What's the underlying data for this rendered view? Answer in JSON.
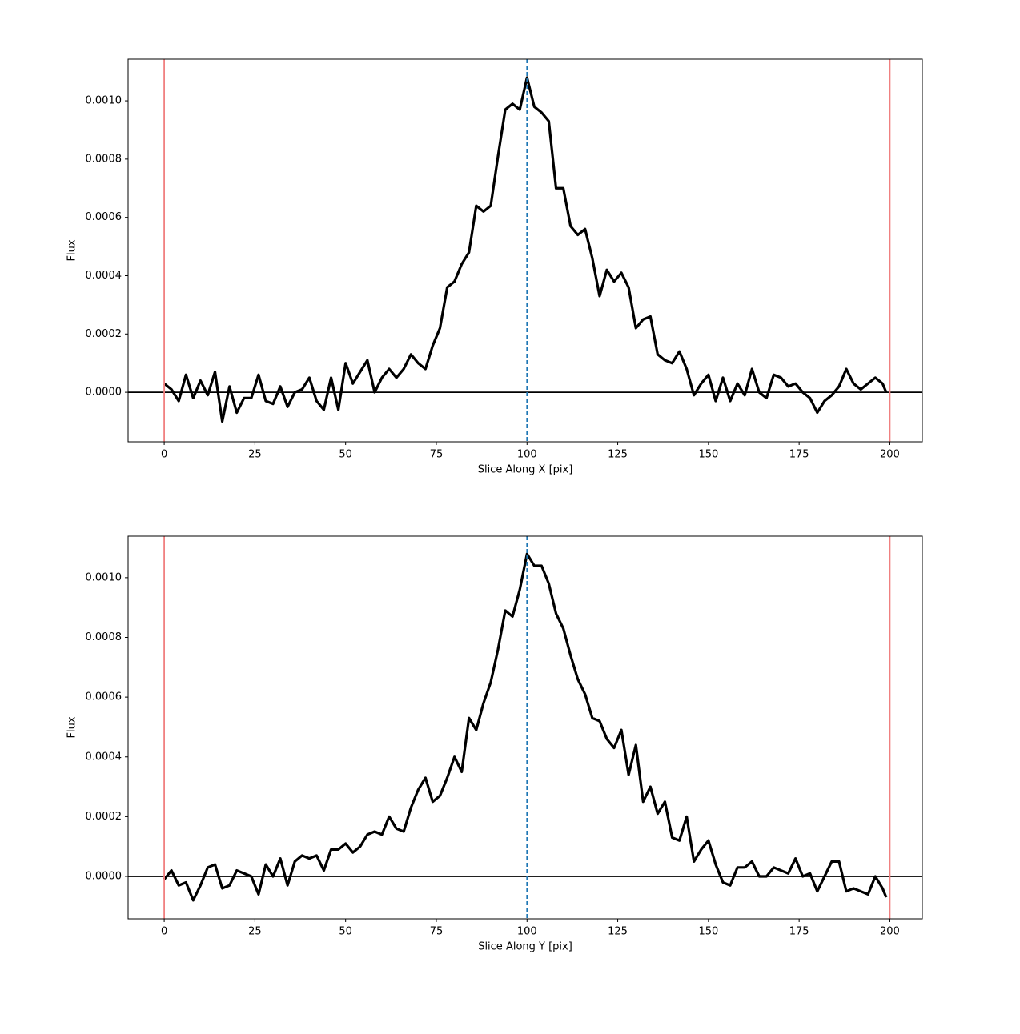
{
  "chart_data": [
    {
      "type": "line",
      "xlabel": "Slice Along X [pix]",
      "ylabel": "Flux",
      "x": [
        0,
        2,
        4,
        6,
        8,
        10,
        12,
        14,
        16,
        18,
        20,
        22,
        24,
        26,
        28,
        30,
        32,
        34,
        36,
        38,
        40,
        42,
        44,
        46,
        48,
        50,
        52,
        54,
        56,
        58,
        60,
        62,
        64,
        66,
        68,
        70,
        72,
        74,
        76,
        78,
        80,
        82,
        84,
        86,
        88,
        90,
        92,
        94,
        96,
        98,
        100,
        102,
        104,
        106,
        108,
        110,
        112,
        114,
        116,
        118,
        120,
        122,
        124,
        126,
        128,
        130,
        132,
        134,
        136,
        138,
        140,
        142,
        144,
        146,
        148,
        150,
        152,
        154,
        156,
        158,
        160,
        162,
        164,
        166,
        168,
        170,
        172,
        174,
        176,
        178,
        180,
        182,
        184,
        186,
        188,
        190,
        192,
        194,
        196,
        198,
        199
      ],
      "series": [
        {
          "color": "#000000",
          "values": [
            3e-05,
            1e-05,
            -3e-05,
            6e-05,
            -2e-05,
            4e-05,
            -1e-05,
            7e-05,
            -0.0001,
            2e-05,
            -7e-05,
            -2e-05,
            -2e-05,
            6e-05,
            -3e-05,
            -4e-05,
            2e-05,
            -5e-05,
            0.0,
            1e-05,
            5e-05,
            -3e-05,
            -6e-05,
            5e-05,
            -6e-05,
            0.0001,
            3e-05,
            7e-05,
            0.00011,
            0.0,
            5e-05,
            8e-05,
            5e-05,
            8e-05,
            0.00013,
            0.0001,
            8e-05,
            0.00016,
            0.00022,
            0.00036,
            0.00038,
            0.00044,
            0.00048,
            0.00064,
            0.00062,
            0.00064,
            0.00081,
            0.00097,
            0.00099,
            0.00097,
            0.00108,
            0.00098,
            0.00096,
            0.00093,
            0.0007,
            0.0007,
            0.00057,
            0.00054,
            0.00056,
            0.00046,
            0.00033,
            0.00042,
            0.00038,
            0.00041,
            0.00036,
            0.00022,
            0.00025,
            0.00026,
            0.00013,
            0.00011,
            0.0001,
            0.00014,
            8e-05,
            -1e-05,
            3e-05,
            6e-05,
            -3e-05,
            5e-05,
            -3e-05,
            3e-05,
            -1e-05,
            8e-05,
            0.0,
            -2e-05,
            6e-05,
            5e-05,
            2e-05,
            3e-05,
            0.0,
            -2e-05,
            -7e-05,
            -3e-05,
            -1e-05,
            2e-05,
            8e-05,
            3e-05,
            1e-05,
            3e-05,
            5e-05,
            3e-05,
            0.0
          ]
        }
      ],
      "xlim": [
        -9.95,
        208.95
      ],
      "ylim": [
        -0.00017,
        0.001143
      ],
      "xticks": [
        0,
        25,
        50,
        75,
        100,
        125,
        150,
        175,
        200
      ],
      "yticks": [
        {
          "value": 0,
          "label": "0.0000"
        },
        {
          "value": 0.0002,
          "label": "0.0002"
        },
        {
          "value": 0.0004,
          "label": "0.0004"
        },
        {
          "value": 0.0006,
          "label": "0.0006"
        },
        {
          "value": 0.0008,
          "label": "0.0008"
        },
        {
          "value": 0.001,
          "label": "0.0010"
        }
      ],
      "vlines": [
        {
          "x": 0,
          "color": "#f08080",
          "style": "solid"
        },
        {
          "x": 200,
          "color": "#f08080",
          "style": "solid"
        },
        {
          "x": 100,
          "color": "#1f77b4",
          "style": "dashed"
        }
      ],
      "hlines": [
        {
          "y": 0,
          "color": "#000000",
          "style": "solid"
        }
      ]
    },
    {
      "type": "line",
      "xlabel": "Slice Along Y [pix]",
      "ylabel": "Flux",
      "x": [
        0,
        2,
        4,
        6,
        8,
        10,
        12,
        14,
        16,
        18,
        20,
        22,
        24,
        26,
        28,
        30,
        32,
        34,
        36,
        38,
        40,
        42,
        44,
        46,
        48,
        50,
        52,
        54,
        56,
        58,
        60,
        62,
        64,
        66,
        68,
        70,
        72,
        74,
        76,
        78,
        80,
        82,
        84,
        86,
        88,
        90,
        92,
        94,
        96,
        98,
        100,
        102,
        104,
        106,
        108,
        110,
        112,
        114,
        116,
        118,
        120,
        122,
        124,
        126,
        128,
        130,
        132,
        134,
        136,
        138,
        140,
        142,
        144,
        146,
        148,
        150,
        152,
        154,
        156,
        158,
        160,
        162,
        164,
        166,
        168,
        170,
        172,
        174,
        176,
        178,
        180,
        182,
        184,
        186,
        188,
        190,
        192,
        194,
        196,
        198,
        199
      ],
      "series": [
        {
          "color": "#000000",
          "values": [
            -1e-05,
            2e-05,
            -3e-05,
            -2e-05,
            -8e-05,
            -3e-05,
            3e-05,
            4e-05,
            -4e-05,
            -3e-05,
            2e-05,
            1e-05,
            0.0,
            -6e-05,
            4e-05,
            0.0,
            6e-05,
            -3e-05,
            5e-05,
            7e-05,
            6e-05,
            7e-05,
            2e-05,
            9e-05,
            9e-05,
            0.00011,
            8e-05,
            0.0001,
            0.00014,
            0.00015,
            0.00014,
            0.0002,
            0.00016,
            0.00015,
            0.00023,
            0.00029,
            0.00033,
            0.00025,
            0.00027,
            0.00033,
            0.0004,
            0.00035,
            0.00053,
            0.00049,
            0.00058,
            0.00065,
            0.00076,
            0.00089,
            0.00087,
            0.00096,
            0.00108,
            0.00104,
            0.00104,
            0.00098,
            0.00088,
            0.00083,
            0.00074,
            0.00066,
            0.00061,
            0.00053,
            0.00052,
            0.00046,
            0.00043,
            0.00049,
            0.00034,
            0.00044,
            0.00025,
            0.0003,
            0.00021,
            0.00025,
            0.00013,
            0.00012,
            0.0002,
            5e-05,
            9e-05,
            0.00012,
            4e-05,
            -2e-05,
            -3e-05,
            3e-05,
            3e-05,
            5e-05,
            0.0,
            0.0,
            3e-05,
            2e-05,
            1e-05,
            6e-05,
            0.0,
            1e-05,
            -5e-05,
            0.0,
            5e-05,
            5e-05,
            -5e-05,
            -4e-05,
            -5e-05,
            -6e-05,
            0.0,
            -4e-05,
            -7e-05
          ]
        }
      ],
      "xlim": [
        -9.95,
        208.95
      ],
      "ylim": [
        -0.000142,
        0.001139
      ],
      "xticks": [
        0,
        25,
        50,
        75,
        100,
        125,
        150,
        175,
        200
      ],
      "yticks": [
        {
          "value": 0,
          "label": "0.0000"
        },
        {
          "value": 0.0002,
          "label": "0.0002"
        },
        {
          "value": 0.0004,
          "label": "0.0004"
        },
        {
          "value": 0.0006,
          "label": "0.0006"
        },
        {
          "value": 0.0008,
          "label": "0.0008"
        },
        {
          "value": 0.001,
          "label": "0.0010"
        }
      ],
      "vlines": [
        {
          "x": 0,
          "color": "#f08080",
          "style": "solid"
        },
        {
          "x": 200,
          "color": "#f08080",
          "style": "solid"
        },
        {
          "x": 100,
          "color": "#1f77b4",
          "style": "dashed"
        }
      ],
      "hlines": [
        {
          "y": 0,
          "color": "#000000",
          "style": "solid"
        }
      ]
    }
  ]
}
